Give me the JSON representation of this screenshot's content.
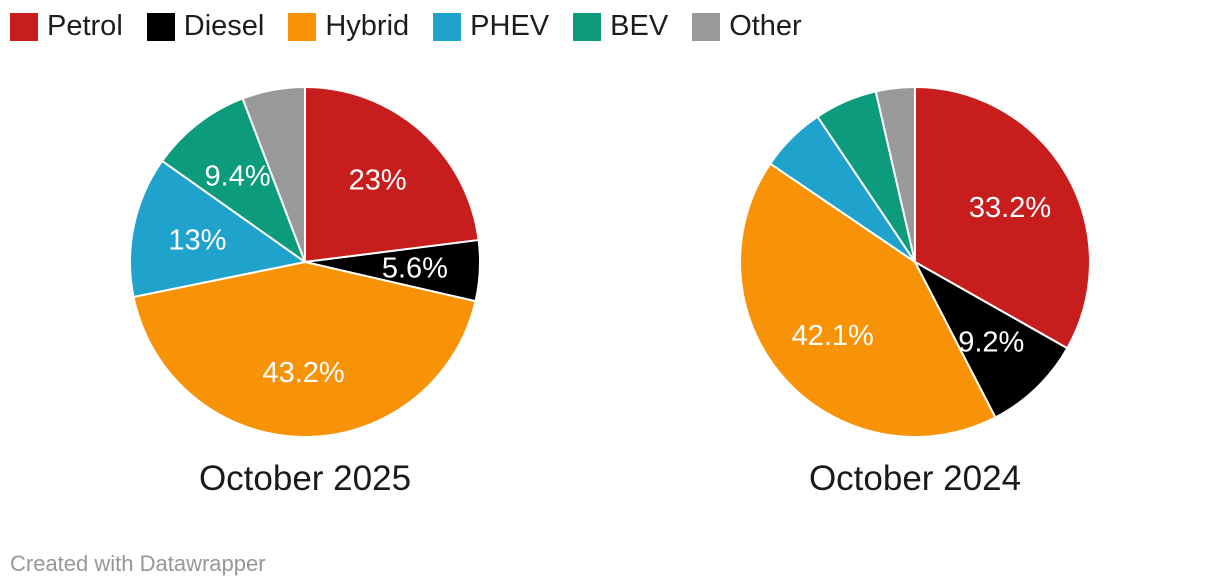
{
  "legend": {
    "items": [
      {
        "label": "Petrol",
        "color": "#c71e1d"
      },
      {
        "label": "Diesel",
        "color": "#000000"
      },
      {
        "label": "Hybrid",
        "color": "#f89308"
      },
      {
        "label": "PHEV",
        "color": "#1fa2cc"
      },
      {
        "label": "BEV",
        "color": "#0c9b7d"
      },
      {
        "label": "Other",
        "color": "#999999"
      }
    ]
  },
  "chart_data": [
    {
      "type": "pie",
      "title": "October 2025",
      "categories": [
        "Petrol",
        "Diesel",
        "Hybrid",
        "PHEV",
        "BEV",
        "Other"
      ],
      "values": [
        23,
        5.6,
        43.2,
        13,
        9.4,
        5.8
      ],
      "labels": [
        "23%",
        "5.6%",
        "43.2%",
        "13%",
        "9.4%",
        ""
      ],
      "colors": [
        "#c71e1d",
        "#000000",
        "#f89308",
        "#1fa2cc",
        "#0c9b7d",
        "#999999"
      ],
      "start_angle_deg": 0,
      "direction": "clockwise",
      "label_text_color": "#ffffff",
      "legend_position": "top-left"
    },
    {
      "type": "pie",
      "title": "October 2024",
      "categories": [
        "Petrol",
        "Diesel",
        "Hybrid",
        "PHEV",
        "BEV",
        "Other"
      ],
      "values": [
        33.2,
        9.2,
        42.1,
        6.1,
        5.8,
        3.6
      ],
      "labels": [
        "33.2%",
        "9.2%",
        "42.1%",
        "",
        "",
        ""
      ],
      "colors": [
        "#c71e1d",
        "#000000",
        "#f89308",
        "#1fa2cc",
        "#0c9b7d",
        "#999999"
      ],
      "start_angle_deg": 0,
      "direction": "clockwise",
      "label_text_color": "#ffffff",
      "legend_position": "top-left"
    }
  ],
  "footer": {
    "credit": "Created with Datawrapper"
  }
}
